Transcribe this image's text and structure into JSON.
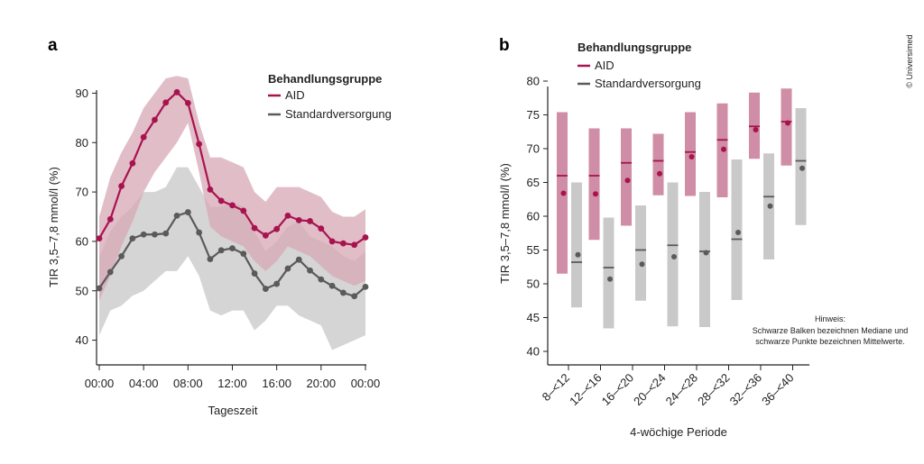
{
  "copyright": "© Universimed",
  "chart_data": [
    {
      "panel": "a",
      "type": "line",
      "xlabel": "Tageszeit",
      "ylabel": "TIR 3,5–7,8 mmol/l (%)",
      "ylim": [
        35,
        95
      ],
      "yticks": [
        40,
        50,
        60,
        70,
        80,
        90
      ],
      "xticks": [
        "00:00",
        "04:00",
        "08:00",
        "12:00",
        "16:00",
        "20:00",
        "00:00"
      ],
      "xlim": [
        0,
        24
      ],
      "legend": {
        "title": "Behandlungsgruppe",
        "position": "top-right"
      },
      "colors": {
        "AID": "#a8134f",
        "Standardversorgung": "#5a5a5a",
        "AID_band": "#d7a7b5",
        "Standard_band": "#d3d3d3"
      },
      "series": [
        {
          "name": "AID",
          "x": [
            0,
            1,
            2,
            3,
            4,
            5,
            6,
            7,
            8,
            9,
            10,
            11,
            12,
            13,
            14,
            15,
            16,
            17,
            18,
            19,
            20,
            21,
            22,
            23,
            24
          ],
          "values": [
            60.6,
            64.5,
            71.2,
            75.8,
            81.1,
            84.6,
            88.1,
            90.2,
            88.0,
            79.7,
            70.5,
            68.2,
            67.3,
            66.2,
            62.7,
            61.2,
            62.5,
            65.2,
            64.3,
            64.1,
            62.6,
            60.0,
            59.6,
            59.3,
            60.8
          ],
          "upper": [
            65,
            73,
            78,
            82,
            87,
            90,
            93,
            93.5,
            93,
            84,
            77,
            77,
            76,
            75,
            70,
            68,
            71,
            71,
            71,
            70,
            69,
            66,
            65,
            65,
            66.5
          ],
          "lower": [
            48,
            53,
            59,
            64,
            70,
            74,
            77,
            80,
            84,
            74,
            63,
            61,
            60,
            59,
            56,
            54,
            56,
            59,
            58,
            57,
            55,
            53,
            52,
            51,
            52
          ]
        },
        {
          "name": "Standardversorgung",
          "x": [
            0,
            1,
            2,
            3,
            4,
            5,
            6,
            7,
            8,
            9,
            10,
            11,
            12,
            13,
            14,
            15,
            16,
            17,
            18,
            19,
            20,
            21,
            22,
            23,
            24
          ],
          "values": [
            50.5,
            53.8,
            57.0,
            60.6,
            61.4,
            61.4,
            61.6,
            65.2,
            65.9,
            61.8,
            56.4,
            58.2,
            58.6,
            57.5,
            53.5,
            50.4,
            51.4,
            54.5,
            56.3,
            54.1,
            52.3,
            51.0,
            49.6,
            48.9,
            50.8
          ],
          "upper": [
            57,
            62,
            65,
            67,
            70,
            70,
            71,
            75,
            75,
            71,
            67,
            67,
            68,
            67,
            62,
            58,
            60,
            63,
            64,
            61,
            60,
            59,
            57,
            56,
            58
          ],
          "lower": [
            41,
            46,
            47,
            49,
            50,
            52,
            54,
            54,
            57,
            53,
            46,
            45,
            46,
            46,
            42,
            44,
            47,
            47,
            45,
            44,
            43,
            38,
            39,
            40,
            41
          ]
        }
      ]
    },
    {
      "panel": "b",
      "type": "bar",
      "xlabel": "4-wöchige Periode",
      "ylabel": "TIR 3,5–7,8 mmol/l (%)",
      "ylim": [
        38,
        82
      ],
      "yticks": [
        40,
        45,
        50,
        55,
        60,
        65,
        70,
        75,
        80
      ],
      "categories": [
        "8–<12",
        "12–<16",
        "16–<20",
        "20–<24",
        "24–<28",
        "28–<32",
        "32–<36",
        "36–<40"
      ],
      "legend": {
        "title": "Behandlungsgruppe",
        "position": "top-left"
      },
      "note": [
        "Hinweis:",
        "Schwarze Balken bezeichnen Mediane und",
        "schwarze Punkte bezeichnen Mittelwerte."
      ],
      "colors": {
        "AID_box": "#cf8ea5",
        "AID_mark": "#a8134f",
        "Standard_box": "#c9c9c9",
        "Standard_mark": "#5a5a5a"
      },
      "series": [
        {
          "name": "AID",
          "lower": [
            51.5,
            56.5,
            58.6,
            63.1,
            63.0,
            62.8,
            68.5,
            67.5
          ],
          "upper": [
            75.4,
            73.0,
            73.0,
            72.2,
            75.4,
            76.7,
            78.3,
            78.9
          ],
          "median": [
            66.0,
            66.0,
            67.9,
            68.2,
            69.5,
            71.3,
            73.3,
            74.0
          ],
          "mean": [
            63.4,
            63.3,
            65.3,
            66.3,
            68.8,
            69.9,
            72.8,
            73.8
          ]
        },
        {
          "name": "Standardversorgung",
          "lower": [
            46.5,
            43.4,
            47.5,
            43.7,
            43.6,
            47.6,
            53.6,
            58.7
          ],
          "upper": [
            65.0,
            59.8,
            61.6,
            65.0,
            63.6,
            68.4,
            69.3,
            76.0
          ],
          "median": [
            53.2,
            52.4,
            55.0,
            55.7,
            54.8,
            56.6,
            62.9,
            68.2
          ],
          "mean": [
            54.3,
            50.7,
            52.9,
            54.0,
            54.6,
            57.6,
            61.5,
            67.1
          ]
        }
      ]
    }
  ]
}
